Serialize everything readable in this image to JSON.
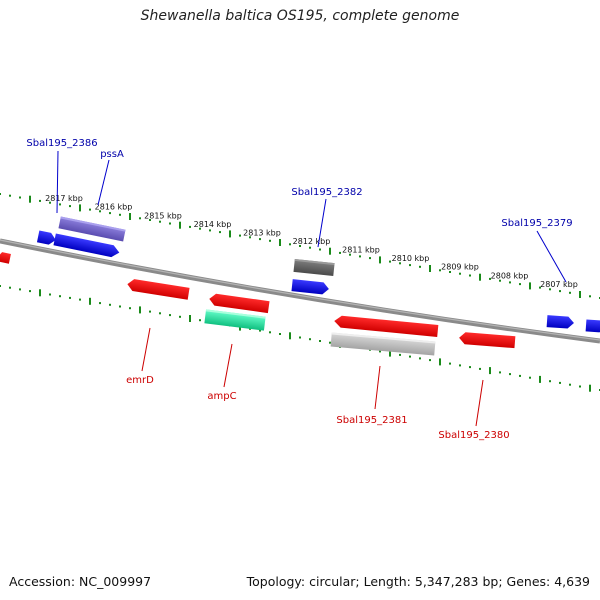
{
  "title": "Shewanella baltica OS195, complete genome",
  "footer": {
    "accession": "Accession: NC_009997",
    "summary": "Topology: circular; Length: 5,347,283 bp; Genes: 4,639"
  },
  "colors": {
    "backbone": "#808080",
    "ticks": "#1a8a1a",
    "forward_gene": "#0000dd",
    "reverse_gene": "#ee0000",
    "pseudo_forward": "#7766cc",
    "dark_forward": "#666666",
    "highlight_reverse": "#22e0a0",
    "light_reverse": "#bbbbbb",
    "label_forward": "#0000aa",
    "label_reverse": "#cc0000"
  },
  "coordinate_labels": [
    {
      "kbp": 2817,
      "text": "2817 kbp"
    },
    {
      "kbp": 2816,
      "text": "2816 kbp"
    },
    {
      "kbp": 2815,
      "text": "2815 kbp"
    },
    {
      "kbp": 2814,
      "text": "2814 kbp"
    },
    {
      "kbp": 2813,
      "text": "2813 kbp"
    },
    {
      "kbp": 2812,
      "text": "2812 kbp"
    },
    {
      "kbp": 2811,
      "text": "2811 kbp"
    },
    {
      "kbp": 2810,
      "text": "2810 kbp"
    },
    {
      "kbp": 2809,
      "text": "2809 kbp"
    },
    {
      "kbp": 2808,
      "text": "2808 kbp"
    },
    {
      "kbp": 2807,
      "text": "2807 kbp"
    }
  ],
  "gene_labels_forward": [
    {
      "name": "Sbal195_2386"
    },
    {
      "name": "pssA"
    },
    {
      "name": "Sbal195_2382"
    },
    {
      "name": "Sbal195_2379"
    }
  ],
  "gene_labels_reverse": [
    {
      "name": "emrD"
    },
    {
      "name": "ampC"
    },
    {
      "name": "Sbal195_2381"
    },
    {
      "name": "Sbal195_2380"
    }
  ]
}
